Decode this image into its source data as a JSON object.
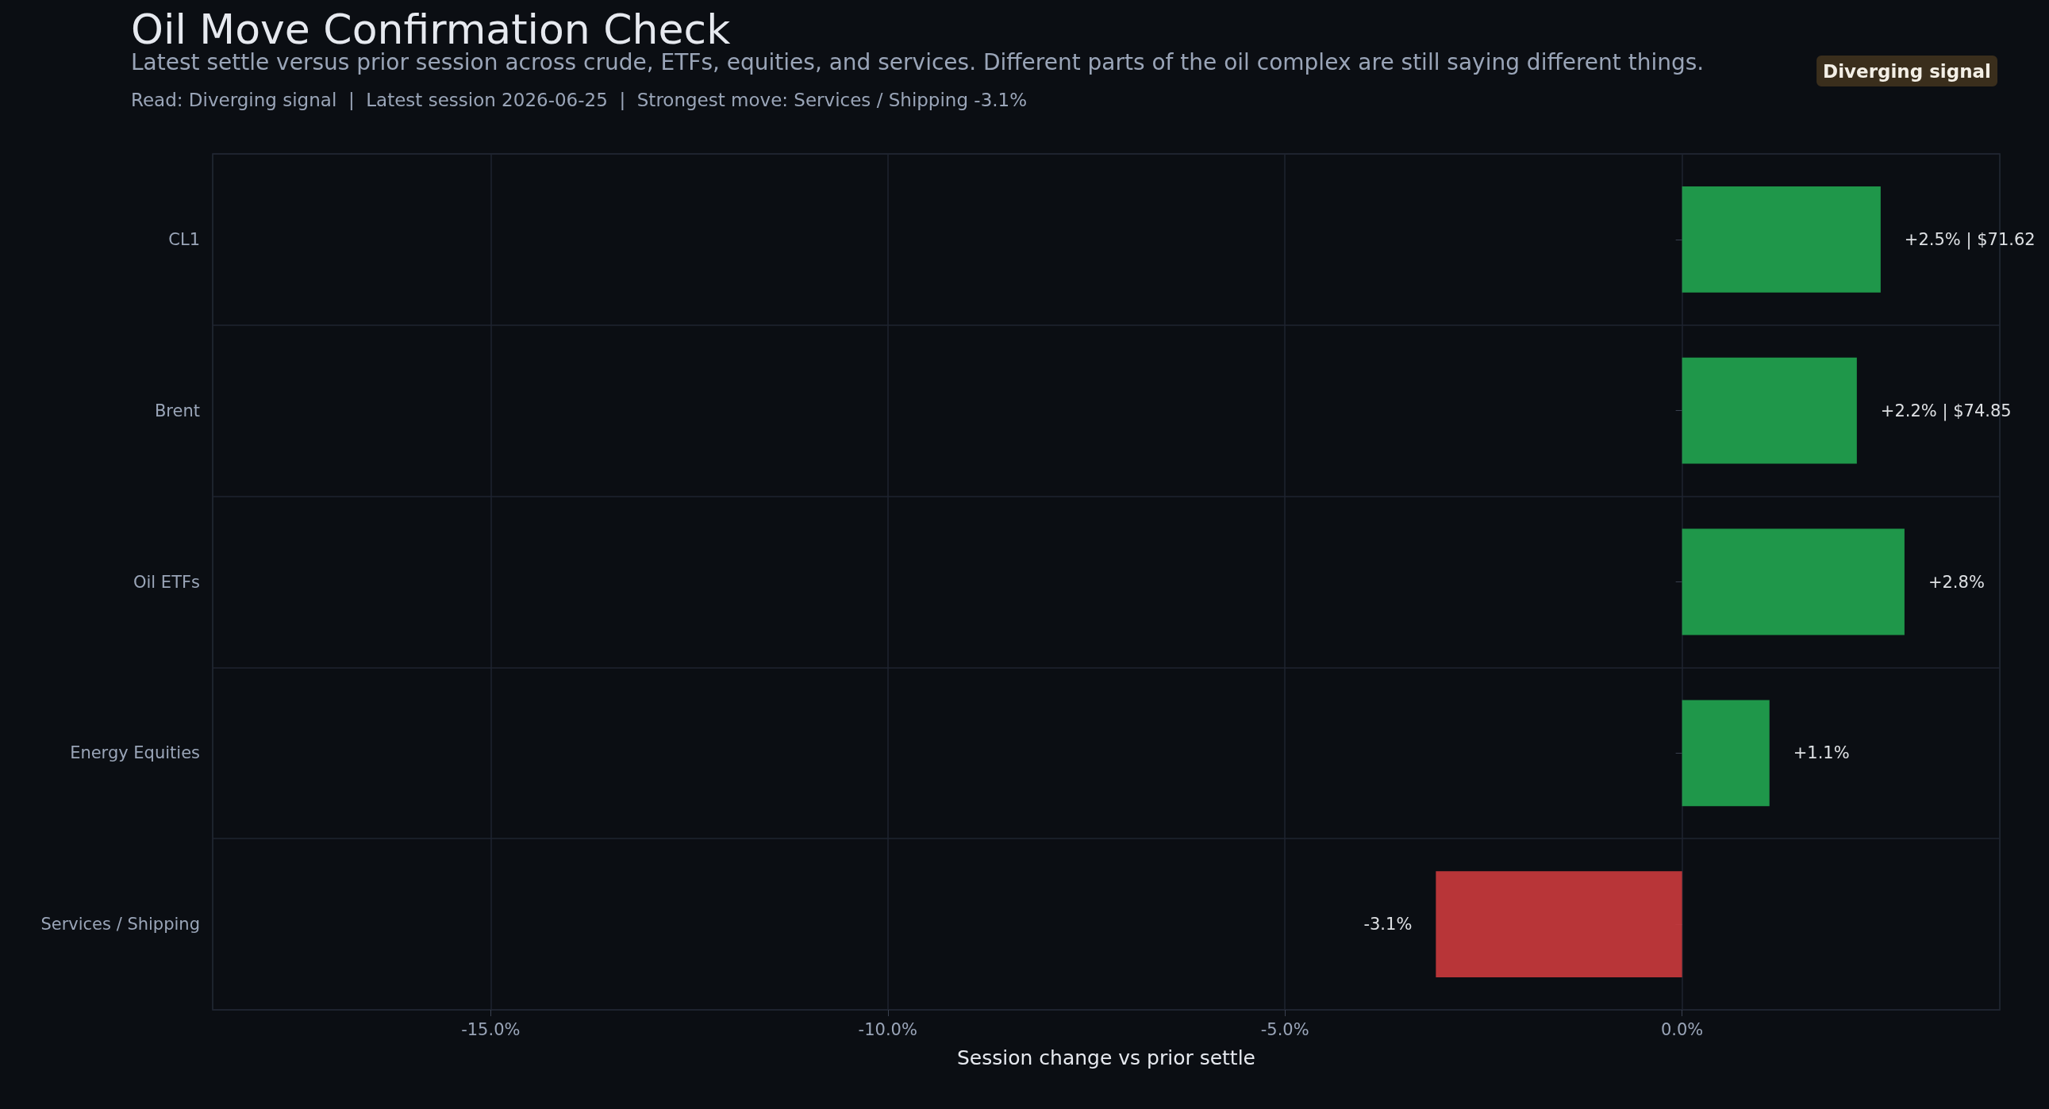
{
  "chart_data": {
    "type": "bar",
    "orientation": "horizontal",
    "title": "Oil Move Confirmation Check",
    "subtitle": "Latest settle versus prior session across crude, ETFs, equities, and services. Different parts of the oil complex are still saying different things.",
    "annotations": [
      "Read: Diverging signal  |  Latest session 2026-06-25  |  Strongest move: Services / Shipping -3.1%",
      "Diverging signal"
    ],
    "xlabel": "Session change vs prior settle",
    "categories": [
      "CL1",
      "Brent",
      "Oil ETFs",
      "Energy Equities",
      "Services / Shipping"
    ],
    "values": [
      2.5,
      2.2,
      2.8,
      1.1,
      -3.1
    ],
    "colors": [
      "#22a34f",
      "#22a34f",
      "#22a34f",
      "#22a34f",
      "#c8383c"
    ],
    "value_labels": [
      "+2.5% | $71.62",
      "+2.2% | $74.85",
      "+2.8%",
      "+1.1%",
      "-3.1%"
    ],
    "xlim": [
      -18.5,
      4.0
    ],
    "xticks": [
      {
        "value": -15,
        "label": "-15.0%"
      },
      {
        "value": -10,
        "label": "-10.0%"
      },
      {
        "value": -5,
        "label": "-5.0%"
      },
      {
        "value": 0,
        "label": "0.0%"
      }
    ],
    "grid": true
  }
}
